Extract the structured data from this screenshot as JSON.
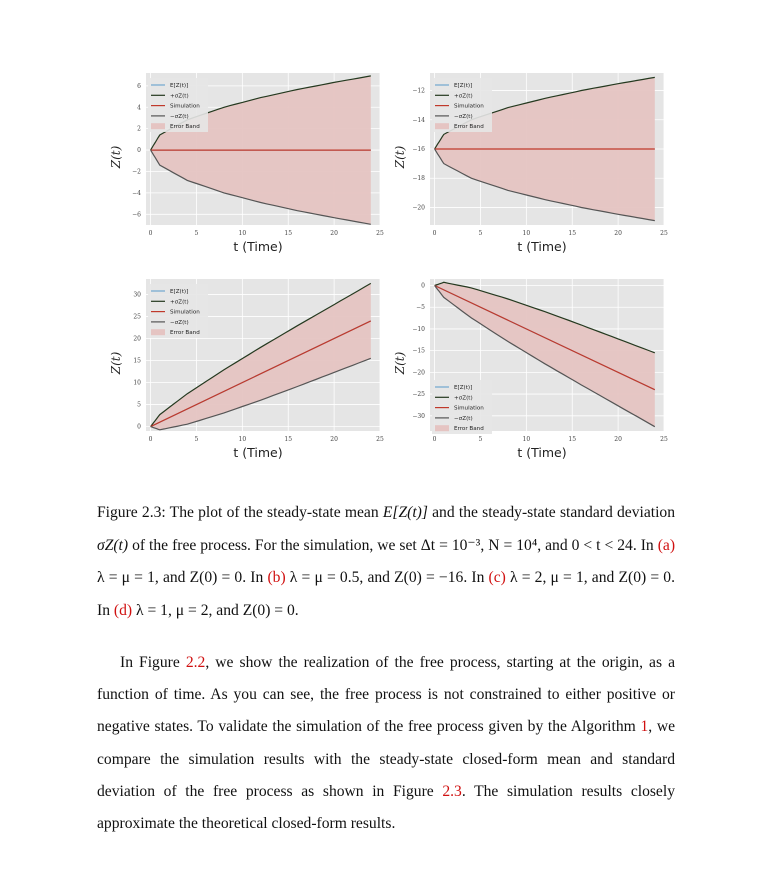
{
  "figure": {
    "panels": [
      {
        "id": "a",
        "yticks": [
          6,
          4,
          2,
          0,
          -2,
          -4,
          -6
        ],
        "xticks": [
          0,
          5,
          10,
          15,
          20,
          25
        ],
        "xlabel": "t (Time)",
        "ylabel": "Z(t)",
        "legend": [
          "E[Z(t)]",
          "+σZ(t)",
          "Simulation",
          "−σZ(t)",
          "Error Band"
        ]
      },
      {
        "id": "b",
        "yticks": [
          -12,
          -14,
          -16,
          -18,
          -20
        ],
        "xticks": [
          0,
          5,
          10,
          15,
          20,
          25
        ],
        "xlabel": "t (Time)",
        "ylabel": "Z(t)",
        "legend": [
          "E[Z(t)]",
          "+σZ(t)",
          "Simulation",
          "−σZ(t)",
          "Error Band"
        ]
      },
      {
        "id": "c",
        "yticks": [
          30,
          25,
          20,
          15,
          10,
          5,
          0
        ],
        "xticks": [
          0,
          5,
          10,
          15,
          20,
          25
        ],
        "xlabel": "t (Time)",
        "ylabel": "Z(t)",
        "legend": [
          "E[Z(t)]",
          "+σZ(t)",
          "Simulation",
          "−σZ(t)",
          "Error Band"
        ]
      },
      {
        "id": "d",
        "yticks": [
          0,
          -5,
          -10,
          -15,
          -20,
          -25,
          -30
        ],
        "xticks": [
          0,
          5,
          10,
          15,
          20,
          25
        ],
        "xlabel": "t (Time)",
        "ylabel": "Z(t)",
        "legend": [
          "E[Z(t)]",
          "+σZ(t)",
          "Simulation",
          "−σZ(t)",
          "Error Band"
        ]
      }
    ],
    "colors": {
      "mean": "#6fa7cf",
      "plus_sigma": "#24391f",
      "simulation": "#c0392b",
      "minus_sigma": "#555555",
      "band": "#e5c4c2",
      "plot_bg": "#e5e5e5"
    }
  },
  "chart_data": [
    {
      "type": "line",
      "panel": "a",
      "params": "λ = μ = 1, Z(0) = 0",
      "xlim": [
        -0.5,
        25
      ],
      "ylim": [
        -7,
        7.2
      ],
      "series": [
        {
          "name": "E[Z(t)]",
          "x": [
            0,
            24
          ],
          "y": [
            0,
            0
          ]
        },
        {
          "name": "+σZ(t)",
          "x": [
            0,
            1,
            4,
            8,
            12,
            16,
            20,
            24
          ],
          "y": [
            0,
            1.41,
            2.83,
            4.0,
            4.9,
            5.66,
            6.32,
            6.93
          ]
        },
        {
          "name": "Simulation",
          "x": [
            0,
            24
          ],
          "y": [
            0,
            0
          ]
        },
        {
          "name": "−σZ(t)",
          "x": [
            0,
            1,
            4,
            8,
            12,
            16,
            20,
            24
          ],
          "y": [
            0,
            -1.41,
            -2.83,
            -4.0,
            -4.9,
            -5.66,
            -6.32,
            -6.93
          ]
        }
      ]
    },
    {
      "type": "line",
      "panel": "b",
      "params": "λ = μ = 0.5, Z(0) = −16",
      "xlim": [
        -0.5,
        25
      ],
      "ylim": [
        -21.2,
        -10.8
      ],
      "series": [
        {
          "name": "E[Z(t)]",
          "x": [
            0,
            24
          ],
          "y": [
            -16,
            -16
          ]
        },
        {
          "name": "+σZ(t)",
          "x": [
            0,
            1,
            4,
            8,
            12,
            16,
            20,
            24
          ],
          "y": [
            -16,
            -15,
            -14,
            -13.17,
            -12.54,
            -12,
            -11.53,
            -11.1
          ]
        },
        {
          "name": "Simulation",
          "x": [
            0,
            24
          ],
          "y": [
            -16,
            -16
          ]
        },
        {
          "name": "−σZ(t)",
          "x": [
            0,
            1,
            4,
            8,
            12,
            16,
            20,
            24
          ],
          "y": [
            -16,
            -17,
            -18,
            -18.83,
            -19.46,
            -20,
            -20.47,
            -20.9
          ]
        }
      ]
    },
    {
      "type": "line",
      "panel": "c",
      "params": "λ = 2, μ = 1, Z(0) = 0",
      "xlim": [
        -0.5,
        25
      ],
      "ylim": [
        -1,
        33.5
      ],
      "series": [
        {
          "name": "E[Z(t)]",
          "x": [
            0,
            24
          ],
          "y": [
            0,
            24
          ]
        },
        {
          "name": "+σZ(t)",
          "x": [
            0,
            1,
            4,
            8,
            12,
            16,
            20,
            24
          ],
          "y": [
            0,
            2.73,
            7.46,
            12.9,
            18.0,
            22.9,
            27.7,
            32.5
          ]
        },
        {
          "name": "Simulation",
          "x": [
            0,
            24
          ],
          "y": [
            0,
            24
          ]
        },
        {
          "name": "−σZ(t)",
          "x": [
            0,
            1,
            4,
            8,
            12,
            16,
            20,
            24
          ],
          "y": [
            0,
            -0.73,
            0.54,
            3.1,
            6.0,
            9.1,
            12.3,
            15.5
          ]
        }
      ]
    },
    {
      "type": "line",
      "panel": "d",
      "params": "λ = 1, μ = 2, Z(0) = 0",
      "xlim": [
        -0.5,
        25
      ],
      "ylim": [
        -33.5,
        1.5
      ],
      "series": [
        {
          "name": "E[Z(t)]",
          "x": [
            0,
            24
          ],
          "y": [
            0,
            -24
          ]
        },
        {
          "name": "+σZ(t)",
          "x": [
            0,
            1,
            4,
            8,
            12,
            16,
            20,
            24
          ],
          "y": [
            0,
            0.73,
            -0.54,
            -3.1,
            -6.0,
            -9.1,
            -12.3,
            -15.5
          ]
        },
        {
          "name": "Simulation",
          "x": [
            0,
            24
          ],
          "y": [
            0,
            -24
          ]
        },
        {
          "name": "−σZ(t)",
          "x": [
            0,
            1,
            4,
            8,
            12,
            16,
            20,
            24
          ],
          "y": [
            0,
            -2.73,
            -7.46,
            -12.9,
            -18.0,
            -22.9,
            -27.7,
            -32.5
          ]
        }
      ]
    }
  ],
  "caption": {
    "s1": "Figure 2.3: The plot of the steady-state mean",
    "s2": "and the steady-state standard deviation",
    "s3": "of the free process. For the simulation, we set",
    "s4": "and",
    "s5": "In",
    "ref_a": "(a)",
    "s6": "In",
    "ref_b": "(b)",
    "s7": "In",
    "ref_c": "(c)",
    "s8": "In",
    "ref_d": "(d)",
    "m_mean": "E[Z(t)]",
    "m_sigma": "σZ(t)",
    "m_dt": "Δt = 10⁻³,",
    "m_N": "N = 10⁴,",
    "m_t": "0 < t < 24.",
    "m_a": "λ = μ = 1, and Z(0) = 0.",
    "m_b": "λ = μ = 0.5, and Z(0) = −16.",
    "m_c": "λ = 2, μ = 1, and Z(0) = 0.",
    "m_d": "λ = 1, μ = 2, and Z(0) = 0."
  },
  "paragraph": {
    "p1": "In Figure",
    "ref_fig22": "2.2",
    "p2": ", we show the realization of the free process, starting at the origin, as a function of time. As you can see, the free process is not constrained to either positive or negative states. To validate the simulation of the free process given by the Algorithm",
    "ref_alg": "1",
    "p3": ", we compare the simulation results with the steady-state closed-form mean and standard deviation of the free process as shown in Figure",
    "ref_fig23": "2.3",
    "p4": ". The simulation results closely approximate the theoretical closed-form results."
  }
}
